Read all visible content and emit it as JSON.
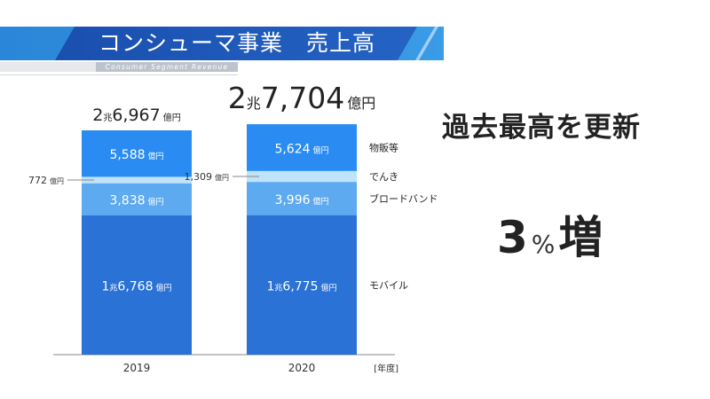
{
  "header": {
    "title": "コンシューマ事業　売上高",
    "subtitle": "Consumer Segment Revenue"
  },
  "message": {
    "record": "過去最高を更新",
    "growth_number": "3",
    "growth_percent": "%",
    "growth_word": "増"
  },
  "chart_data": {
    "type": "bar",
    "stacked": true,
    "unit": "億円",
    "x_unit": "[年度]",
    "categories": [
      "2019",
      "2020"
    ],
    "totals": [
      {
        "big": "2",
        "big_unit": "兆",
        "value": "6,967",
        "unit": "億円"
      },
      {
        "big": "2",
        "big_unit": "兆",
        "value": "7,704",
        "unit": "億円"
      }
    ],
    "series": [
      {
        "name": "モバイル",
        "values": [
          16768,
          16775
        ],
        "color": "#2a72d6",
        "labels": [
          {
            "big": "1",
            "big_unit": "兆",
            "value": "6,768",
            "unit": "億円"
          },
          {
            "big": "1",
            "big_unit": "兆",
            "value": "6,775",
            "unit": "億円"
          }
        ],
        "label_style": "inside"
      },
      {
        "name": "ブロードバンド",
        "values": [
          3838,
          3996
        ],
        "color": "#5daaf0",
        "labels": [
          {
            "value": "3,838",
            "unit": "億円"
          },
          {
            "value": "3,996",
            "unit": "億円"
          }
        ],
        "label_style": "inside"
      },
      {
        "name": "でんき",
        "values": [
          772,
          1309
        ],
        "color": "#bfe3fa",
        "labels": [
          {
            "value": "772",
            "unit": "億円"
          },
          {
            "value": "1,309",
            "unit": "億円"
          }
        ],
        "label_style": "callout"
      },
      {
        "name": "物販等",
        "values": [
          5588,
          5624
        ],
        "color": "#2a8cf2",
        "labels": [
          {
            "value": "5,588",
            "unit": "億円"
          },
          {
            "value": "5,624",
            "unit": "億円"
          }
        ],
        "label_style": "inside"
      }
    ]
  }
}
